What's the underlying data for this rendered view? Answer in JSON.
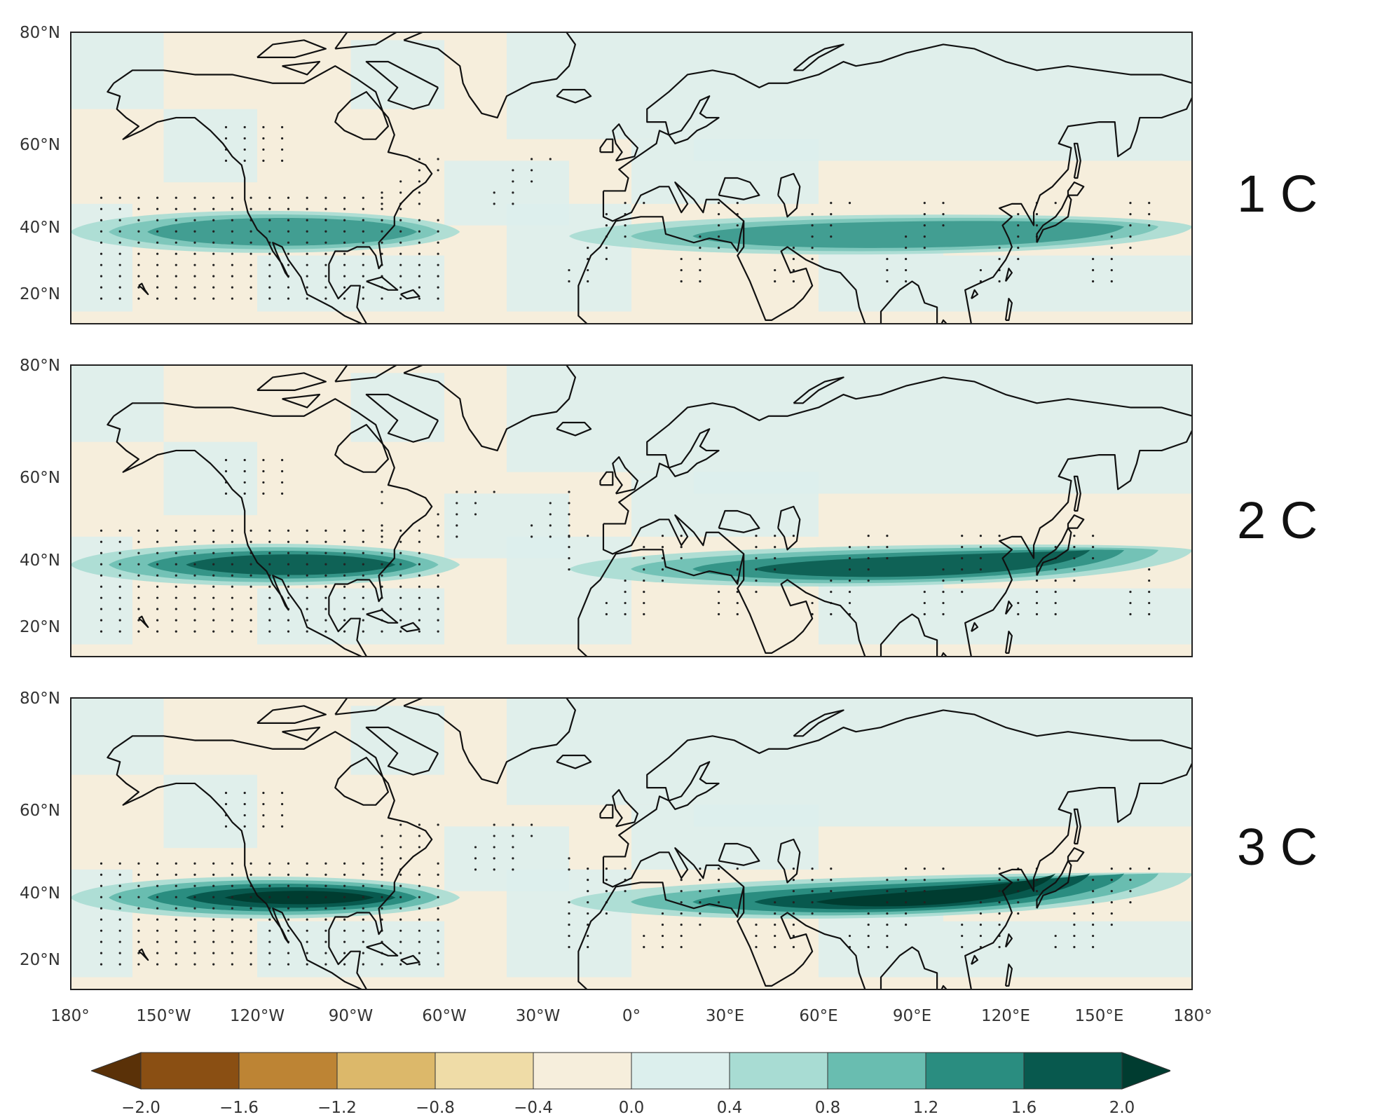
{
  "panels": [
    {
      "label": "1 C",
      "intensity": 1
    },
    {
      "label": "2 C",
      "intensity": 2
    },
    {
      "label": "3 C",
      "intensity": 3
    }
  ],
  "lat_ticks": [
    "80°N",
    "60°N",
    "40°N",
    "20°N"
  ],
  "lon_ticks": [
    "180°",
    "150°W",
    "120°W",
    "90°W",
    "60°W",
    "30°W",
    "0°",
    "30°E",
    "60°E",
    "90°E",
    "120°E",
    "150°E",
    "180°"
  ],
  "colorbar": {
    "ticks": [
      "−2.0",
      "−1.6",
      "−1.2",
      "−0.8",
      "−0.4",
      "0.0",
      "0.4",
      "0.8",
      "1.2",
      "1.6",
      "2.0"
    ],
    "colors": [
      "#5a3108",
      "#8a4f13",
      "#bd8434",
      "#dcb86a",
      "#efdca7",
      "#f6eedc",
      "#dcefed",
      "#a8dcd3",
      "#69bdb0",
      "#2a8d80",
      "#08594e",
      "#003c30"
    ]
  },
  "colors": {
    "land_ocean_dry": "#f6eedc",
    "light_wet": "#dcefed",
    "coast": "#111111"
  }
}
